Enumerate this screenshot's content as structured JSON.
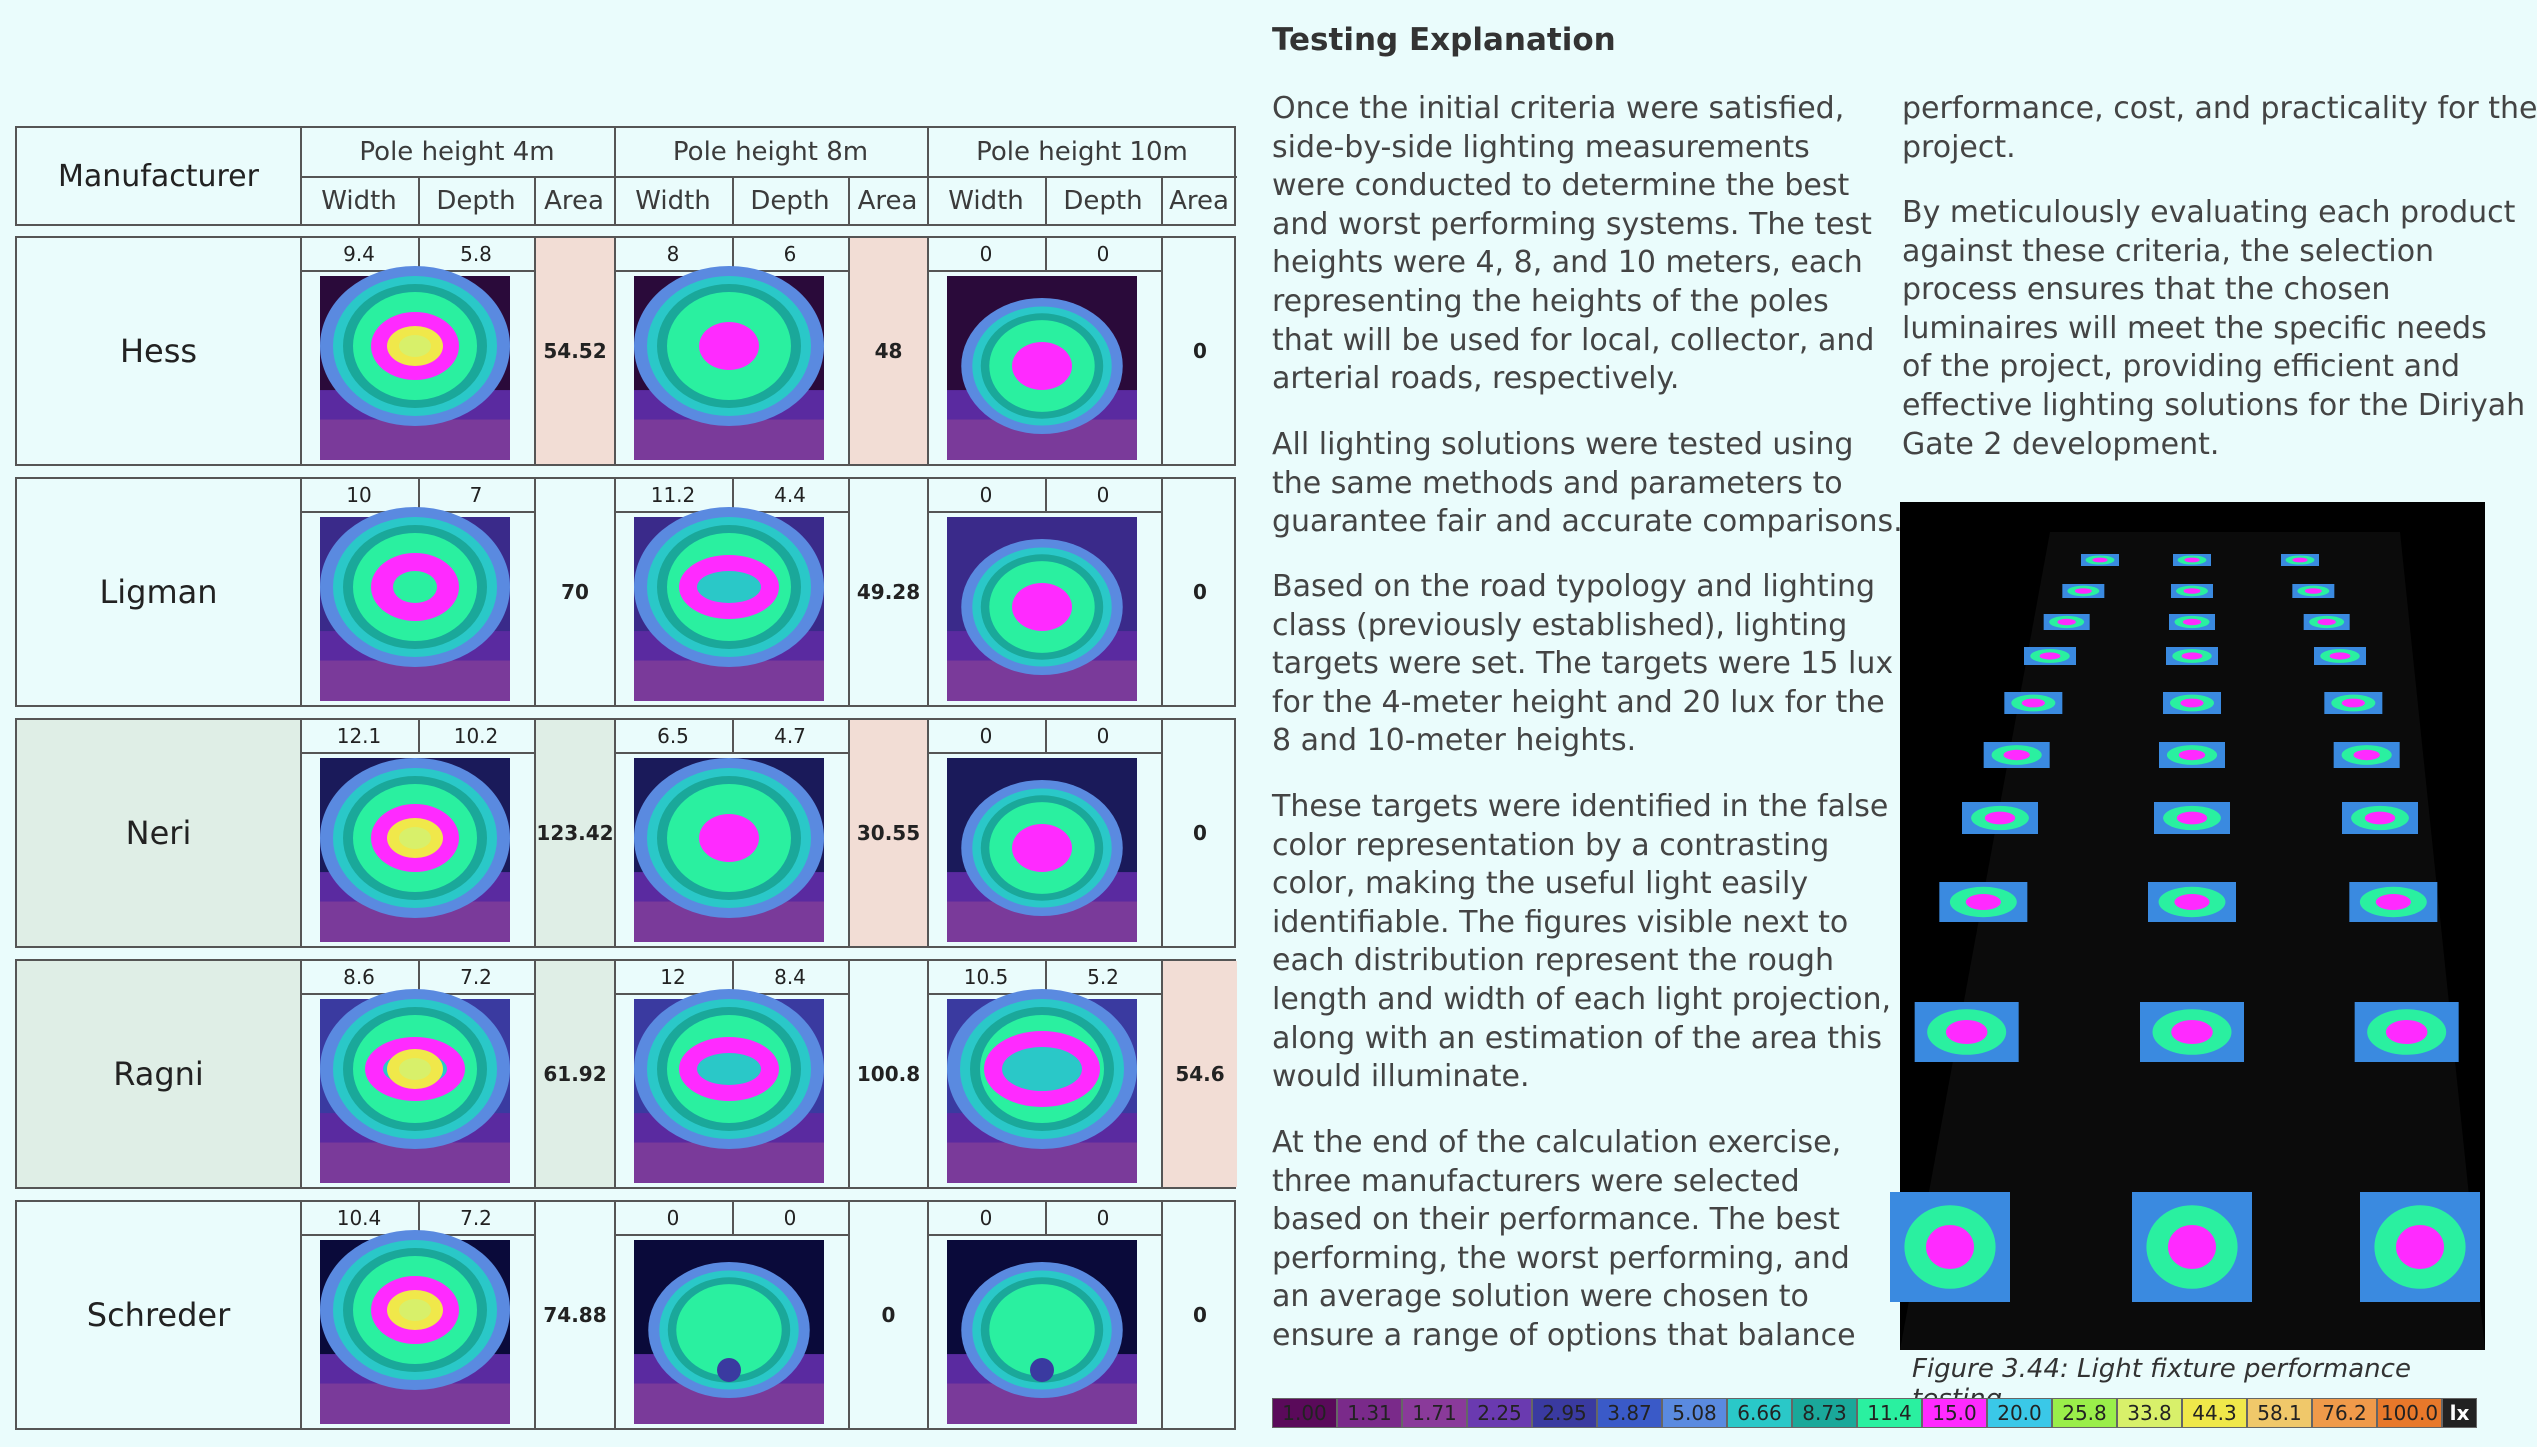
{
  "table": {
    "manufacturer_label": "Manufacturer",
    "pole_heights": [
      "Pole height 4m",
      "Pole height 8m",
      "Pole height 10m"
    ],
    "sub_headers": [
      "Width",
      "Depth",
      "Area"
    ],
    "rows": [
      {
        "name": "Hess",
        "values": [
          {
            "width": "9.4",
            "depth": "5.8",
            "area": "54.52",
            "highlight": true
          },
          {
            "width": "8",
            "depth": "6",
            "area": "48",
            "highlight": true
          },
          {
            "width": "0",
            "depth": "0",
            "area": "0",
            "highlight": false
          }
        ]
      },
      {
        "name": "Ligman",
        "values": [
          {
            "width": "10",
            "depth": "7",
            "area": "70",
            "highlight": false
          },
          {
            "width": "11.2",
            "depth": "4.4",
            "area": "49.28",
            "highlight": false
          },
          {
            "width": "0",
            "depth": "0",
            "area": "0",
            "highlight": false
          }
        ]
      },
      {
        "name": "Neri",
        "highlight_row": true,
        "values": [
          {
            "width": "12.1",
            "depth": "10.2",
            "area": "123.42",
            "highlight": false
          },
          {
            "width": "6.5",
            "depth": "4.7",
            "area": "30.55",
            "highlight": true
          },
          {
            "width": "0",
            "depth": "0",
            "area": "0",
            "highlight": false
          }
        ]
      },
      {
        "name": "Ragni",
        "highlight_row": true,
        "values": [
          {
            "width": "8.6",
            "depth": "7.2",
            "area": "61.92",
            "highlight": false
          },
          {
            "width": "12",
            "depth": "8.4",
            "area": "100.8",
            "highlight": false
          },
          {
            "width": "10.5",
            "depth": "5.2",
            "area": "54.6",
            "highlight": true
          }
        ]
      },
      {
        "name": "Schreder",
        "values": [
          {
            "width": "10.4",
            "depth": "7.2",
            "area": "74.88",
            "highlight": false
          },
          {
            "width": "0",
            "depth": "0",
            "area": "0",
            "highlight": false
          },
          {
            "width": "0",
            "depth": "0",
            "area": "0",
            "highlight": false
          }
        ]
      }
    ]
  },
  "article": {
    "heading": "Testing Explanation",
    "col1": [
      "Once the initial criteria were satisfied,\nside-by-side lighting measurements\nwere conducted to determine the best\nand worst performing systems. The test\nheights were 4, 8, and 10 meters, each\nrepresenting the heights of the poles\nthat will be used for local, collector, and\narterial roads, respectively.",
      "All lighting solutions were tested using\nthe same methods and parameters to\nguarantee fair and accurate comparisons.",
      "Based on the road typology and lighting\nclass (previously established), lighting\ntargets were set. The targets were 15 lux\nfor the 4-meter height and 20 lux for the\n8 and 10-meter heights.",
      "These targets were identified in the false\ncolor representation by a contrasting\ncolor, making the useful light easily\nidentifiable. The figures visible next to\neach distribution represent the rough\nlength and width of each light projection,\nalong with an estimation of the area this\nwould illuminate.",
      "At the end of the calculation exercise,\nthree manufacturers were selected\nbased on their performance. The best\nperforming, the worst performing, and\nan average solution were chosen to\nensure a range of options that balance"
    ],
    "col2": [
      "performance, cost, and practicality for the\nproject.",
      "By meticulously evaluating each product\nagainst these criteria, the selection\nprocess ensures that the chosen\nluminaires will meet the specific needs\nof the project, providing efficient and\neffective lighting solutions for the Diriyah\nGate 2 development."
    ],
    "caption_label": "Figure 3.44:",
    "caption_text": " Light fixture performance testing."
  },
  "legend": {
    "unit": "lx",
    "stops": [
      {
        "label": "1.00",
        "color": "#5a0a5a"
      },
      {
        "label": "1.31",
        "color": "#7a2a8a"
      },
      {
        "label": "1.71",
        "color": "#8a3a9a"
      },
      {
        "label": "2.25",
        "color": "#6a3ab0"
      },
      {
        "label": "2.95",
        "color": "#3a3aa0"
      },
      {
        "label": "3.87",
        "color": "#3a5ac8"
      },
      {
        "label": "5.08",
        "color": "#5a8ae0"
      },
      {
        "label": "6.66",
        "color": "#2ac8c8"
      },
      {
        "label": "8.73",
        "color": "#1aa89a"
      },
      {
        "label": "11.4",
        "color": "#2af0a0"
      },
      {
        "label": "15.0",
        "color": "#ff2aff"
      },
      {
        "label": "20.0",
        "color": "#3ac8e8"
      },
      {
        "label": "25.8",
        "color": "#9aee4a"
      },
      {
        "label": "33.8",
        "color": "#d8f06a"
      },
      {
        "label": "44.3",
        "color": "#f0e84a"
      },
      {
        "label": "58.1",
        "color": "#f0c86a"
      },
      {
        "label": "76.2",
        "color": "#f09a4a"
      },
      {
        "label": "100.0",
        "color": "#e8782a"
      }
    ]
  },
  "colors": {
    "highlight_area": "#f2ddd5",
    "highlight_row": "#dfeee6",
    "magenta": "#ff2aff",
    "green": "#2af0a0"
  }
}
